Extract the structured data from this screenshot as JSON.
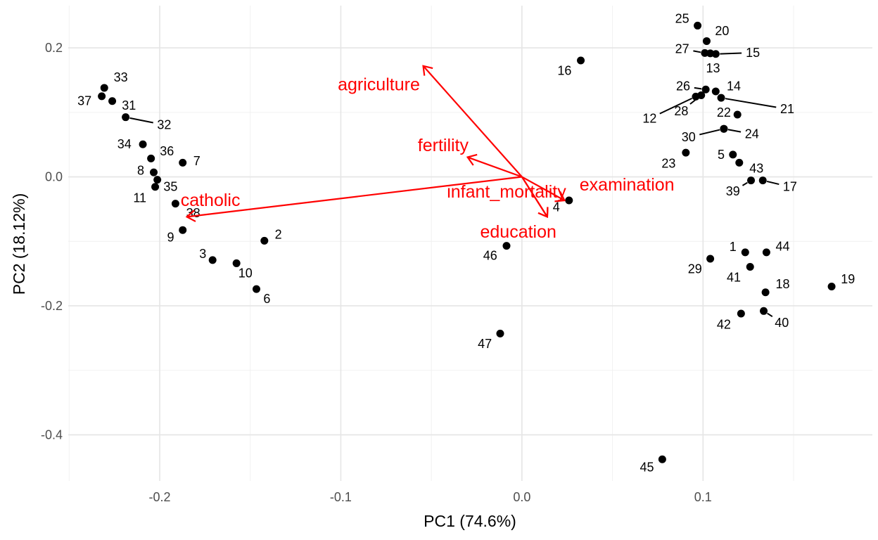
{
  "chart_data": {
    "type": "scatter",
    "xlabel": "PC1 (74.6%)",
    "ylabel": "PC2 (18.12%)",
    "xlim": [
      -0.2505,
      0.1935
    ],
    "ylim": [
      -0.4715,
      0.2655
    ],
    "x_ticks": [
      -0.2,
      -0.1,
      0.0,
      0.1
    ],
    "x_tick_labels": [
      "-0.2",
      "-0.1",
      "0.0",
      "0.1"
    ],
    "y_ticks": [
      -0.4,
      -0.2,
      0.0,
      0.2
    ],
    "y_tick_labels": [
      "-0.4",
      "-0.2",
      "0.0",
      "0.2"
    ],
    "grid": true,
    "point_color": "#000000",
    "loading_color": "#ff0000",
    "points": [
      {
        "label": "1",
        "x": 0.1233,
        "y": -0.117,
        "lx": 0.1165,
        "ly": -0.1085
      },
      {
        "label": "2",
        "x": -0.1422,
        "y": -0.099,
        "lx": -0.1345,
        "ly": -0.0895
      },
      {
        "label": "3",
        "x": -0.1708,
        "y": -0.129,
        "lx": -0.1762,
        "ly": -0.1195
      },
      {
        "label": "4",
        "x": 0.026,
        "y": -0.0365,
        "lx": 0.019,
        "ly": -0.047
      },
      {
        "label": "5",
        "x": 0.1165,
        "y": 0.0345,
        "lx": 0.11,
        "ly": 0.0345
      },
      {
        "label": "6",
        "x": -0.1466,
        "y": -0.174,
        "lx": -0.1408,
        "ly": -0.189
      },
      {
        "label": "7",
        "x": -0.1873,
        "y": 0.022,
        "lx": -0.1795,
        "ly": 0.0245
      },
      {
        "label": "8",
        "x": -0.2033,
        "y": 0.007,
        "lx": -0.2105,
        "ly": 0.01
      },
      {
        "label": "9",
        "x": -0.1873,
        "y": -0.0825,
        "lx": -0.194,
        "ly": -0.094
      },
      {
        "label": "10",
        "x": -0.1576,
        "y": -0.134,
        "lx": -0.1527,
        "ly": -0.1495
      },
      {
        "label": "11",
        "x": -0.2025,
        "y": -0.0155,
        "lx": -0.211,
        "ly": -0.0325
      },
      {
        "label": "12",
        "x": 0.096,
        "y": 0.1245,
        "lx": 0.0705,
        "ly": 0.0905
      },
      {
        "label": "13",
        "x": 0.104,
        "y": 0.1915,
        "lx": 0.1055,
        "ly": 0.1685
      },
      {
        "label": "14",
        "x": 0.107,
        "y": 0.1325,
        "lx": 0.117,
        "ly": 0.1405
      },
      {
        "label": "15",
        "x": 0.107,
        "y": 0.1905,
        "lx": 0.1275,
        "ly": 0.1925
      },
      {
        "label": "16",
        "x": 0.0325,
        "y": 0.1805,
        "lx": 0.0235,
        "ly": 0.1645
      },
      {
        "label": "17",
        "x": 0.133,
        "y": -0.0055,
        "lx": 0.148,
        "ly": -0.0155
      },
      {
        "label": "18",
        "x": 0.1345,
        "y": -0.179,
        "lx": 0.144,
        "ly": -0.1665
      },
      {
        "label": "19",
        "x": 0.171,
        "y": -0.17,
        "lx": 0.18,
        "ly": -0.1585
      },
      {
        "label": "20",
        "x": 0.102,
        "y": 0.2105,
        "lx": 0.1105,
        "ly": 0.2265
      },
      {
        "label": "21",
        "x": 0.11,
        "y": 0.1225,
        "lx": 0.1465,
        "ly": 0.105
      },
      {
        "label": "22",
        "x": 0.119,
        "y": 0.0965,
        "lx": 0.1115,
        "ly": 0.1
      },
      {
        "label": "23",
        "x": 0.0905,
        "y": 0.0375,
        "lx": 0.081,
        "ly": 0.0205
      },
      {
        "label": "24",
        "x": 0.1115,
        "y": 0.0745,
        "lx": 0.127,
        "ly": 0.0665
      },
      {
        "label": "25",
        "x": 0.097,
        "y": 0.2345,
        "lx": 0.0885,
        "ly": 0.2455
      },
      {
        "label": "26",
        "x": 0.1015,
        "y": 0.1355,
        "lx": 0.089,
        "ly": 0.1405
      },
      {
        "label": "27",
        "x": 0.101,
        "y": 0.192,
        "lx": 0.0885,
        "ly": 0.1985
      },
      {
        "label": "28",
        "x": 0.099,
        "y": 0.1265,
        "lx": 0.088,
        "ly": 0.102
      },
      {
        "label": "29",
        "x": 0.104,
        "y": -0.127,
        "lx": 0.0955,
        "ly": -0.143
      },
      {
        "label": "30",
        "x": 0.1115,
        "y": 0.0745,
        "lx": 0.092,
        "ly": 0.0615
      },
      {
        "label": "31",
        "x": -0.2262,
        "y": 0.1175,
        "lx": -0.217,
        "ly": 0.1105
      },
      {
        "label": "32",
        "x": -0.2188,
        "y": 0.0925,
        "lx": -0.1975,
        "ly": 0.0805
      },
      {
        "label": "33",
        "x": -0.2306,
        "y": 0.138,
        "lx": -0.2215,
        "ly": 0.1545
      },
      {
        "label": "34",
        "x": -0.2093,
        "y": 0.0505,
        "lx": -0.2195,
        "ly": 0.0505
      },
      {
        "label": "35",
        "x": -0.2013,
        "y": -0.0045,
        "lx": -0.194,
        "ly": -0.015
      },
      {
        "label": "36",
        "x": -0.2048,
        "y": 0.0285,
        "lx": -0.196,
        "ly": 0.04
      },
      {
        "label": "37",
        "x": -0.232,
        "y": 0.125,
        "lx": -0.2415,
        "ly": 0.118
      },
      {
        "label": "38",
        "x": -0.1913,
        "y": -0.0415,
        "lx": -0.1815,
        "ly": -0.056
      },
      {
        "label": "39",
        "x": 0.1265,
        "y": -0.0055,
        "lx": 0.1165,
        "ly": -0.0225
      },
      {
        "label": "40",
        "x": 0.1335,
        "y": -0.208,
        "lx": 0.1435,
        "ly": -0.226
      },
      {
        "label": "41",
        "x": 0.126,
        "y": -0.1395,
        "lx": 0.117,
        "ly": -0.156
      },
      {
        "label": "42",
        "x": 0.121,
        "y": -0.212,
        "lx": 0.1115,
        "ly": -0.229
      },
      {
        "label": "43",
        "x": 0.12,
        "y": 0.022,
        "lx": 0.1295,
        "ly": 0.013
      },
      {
        "label": "44",
        "x": 0.135,
        "y": -0.117,
        "lx": 0.144,
        "ly": -0.108
      },
      {
        "label": "45",
        "x": 0.0775,
        "y": -0.438,
        "lx": 0.069,
        "ly": -0.4505
      },
      {
        "label": "46",
        "x": -0.0085,
        "y": -0.107,
        "lx": -0.0175,
        "ly": -0.122
      },
      {
        "label": "47",
        "x": -0.012,
        "y": -0.243,
        "lx": -0.0205,
        "ly": -0.259
      }
    ],
    "loadings": [
      {
        "name": "agriculture",
        "x": -0.0545,
        "y": 0.172,
        "lx": -0.079,
        "ly": 0.143
      },
      {
        "name": "fertility",
        "x": -0.03,
        "y": 0.0305,
        "lx": -0.0435,
        "ly": 0.0485
      },
      {
        "name": "examination",
        "x": 0.0235,
        "y": -0.0365,
        "lx": 0.058,
        "ly": -0.0125
      },
      {
        "name": "infant_mortality",
        "x": 0.014,
        "y": -0.062,
        "lx": -0.0085,
        "ly": -0.0235
      },
      {
        "name": "education",
        "x": 0.014,
        "y": -0.062,
        "lx": -0.002,
        "ly": -0.0855
      },
      {
        "name": "catholic",
        "x": -0.185,
        "y": -0.062,
        "lx": -0.172,
        "ly": -0.0365
      }
    ]
  }
}
